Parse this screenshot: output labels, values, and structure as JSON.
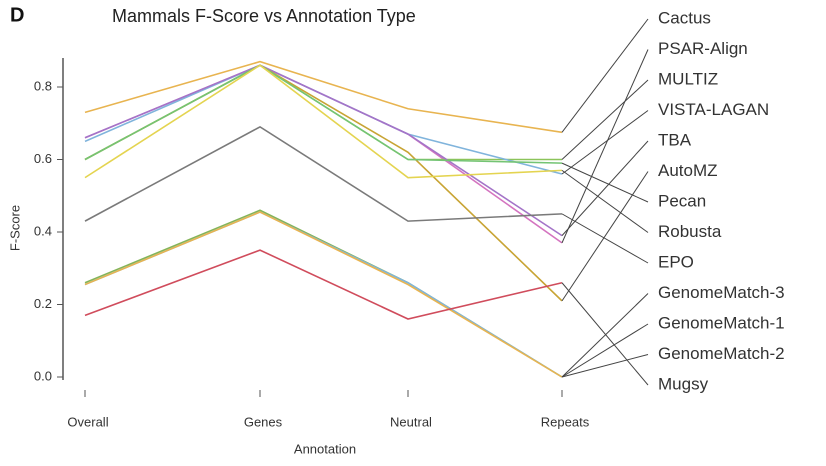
{
  "chart_data": {
    "type": "line",
    "panel": "D",
    "title": "Mammals F-Score vs Annotation Type",
    "x_label": "Annotation",
    "y_label": "F-Score",
    "categories": [
      "Overall",
      "Genes",
      "Neutral",
      "Repeats"
    ],
    "ylim": [
      0,
      0.88
    ],
    "yticks": [
      {
        "value": 0,
        "label": "0.0"
      },
      0.2,
      0.4,
      0.6,
      0.8
    ],
    "series": [
      {
        "name": "Cactus",
        "color": "#e8b450",
        "values": [
          0.73,
          0.87,
          0.74,
          0.675
        ]
      },
      {
        "name": "PSAR-Align",
        "color": "#d474c0",
        "values": [
          0.66,
          0.86,
          0.67,
          0.37
        ]
      },
      {
        "name": "MULTIZ",
        "color": "#8cc45a",
        "values": [
          0.6,
          0.86,
          0.6,
          0.6
        ]
      },
      {
        "name": "VISTA-LAGAN",
        "color": "#80b4dc",
        "values": [
          0.65,
          0.86,
          0.67,
          0.56
        ]
      },
      {
        "name": "TBA",
        "color": "#a474c8",
        "values": [
          0.66,
          0.86,
          0.67,
          0.39
        ]
      },
      {
        "name": "AutoMZ",
        "color": "#c8a434",
        "values": [
          0.6,
          0.86,
          0.62,
          0.21
        ]
      },
      {
        "name": "Pecan",
        "color": "#74c474",
        "values": [
          0.6,
          0.86,
          0.6,
          0.59
        ]
      },
      {
        "name": "Robusta",
        "color": "#e4d450",
        "values": [
          0.55,
          0.86,
          0.55,
          0.57
        ]
      },
      {
        "name": "EPO",
        "color": "#7a7a7a",
        "values": [
          0.43,
          0.69,
          0.43,
          0.45
        ]
      },
      {
        "name": "GenomeMatch-3",
        "color": "#84b458",
        "values": [
          0.26,
          0.46,
          0.26,
          0.0
        ]
      },
      {
        "name": "GenomeMatch-1",
        "color": "#80b4dc",
        "values": [
          0.255,
          0.455,
          0.26,
          0.0
        ]
      },
      {
        "name": "GenomeMatch-2",
        "color": "#e8b450",
        "values": [
          0.255,
          0.455,
          0.255,
          0.0
        ]
      },
      {
        "name": "Mugsy",
        "color": "#d04c5c",
        "values": [
          0.17,
          0.35,
          0.16,
          0.26
        ]
      }
    ]
  }
}
